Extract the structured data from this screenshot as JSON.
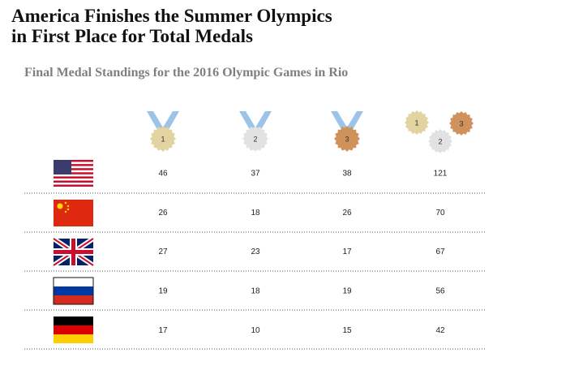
{
  "header": {
    "title_lines": [
      "America Finishes the Summer Olympics",
      "in First Place for Total Medals"
    ],
    "subtitle": "Final Medal Standings for the 2016 Olympic Games in Rio"
  },
  "table": {
    "medal_columns": [
      "1",
      "2",
      "3"
    ],
    "total_column": [
      "1",
      "2",
      "3"
    ],
    "rows": [
      [
        46,
        37,
        38,
        121
      ],
      [
        26,
        18,
        26,
        70
      ],
      [
        27,
        23,
        17,
        67
      ],
      [
        19,
        18,
        19,
        56
      ],
      [
        17,
        10,
        15,
        42
      ]
    ]
  }
}
